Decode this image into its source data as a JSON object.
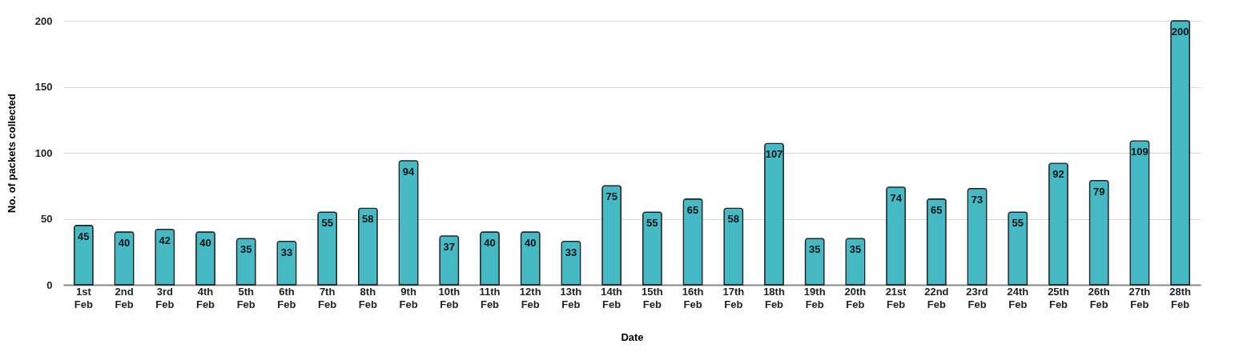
{
  "chart_data": {
    "type": "bar",
    "xlabel": "Date",
    "ylabel": "No. of packets collected",
    "categories": [
      "1st Feb",
      "2nd Feb",
      "3rd Feb",
      "4th Feb",
      "5th Feb",
      "6th Feb",
      "7th Feb",
      "8th Feb",
      "9th Feb",
      "10th Feb",
      "11th Feb",
      "12th Feb",
      "13th Feb",
      "14th Feb",
      "15th Feb",
      "16th Feb",
      "17th Feb",
      "18th Feb",
      "19th Feb",
      "20th Feb",
      "21st Feb",
      "22nd Feb",
      "23rd Feb",
      "24th Feb",
      "25th Feb",
      "26th Feb",
      "27th Feb",
      "28th Feb"
    ],
    "values": [
      45,
      40,
      42,
      40,
      35,
      33,
      55,
      58,
      94,
      37,
      40,
      40,
      33,
      75,
      55,
      65,
      58,
      107,
      35,
      35,
      74,
      65,
      73,
      55,
      92,
      79,
      109,
      200
    ],
    "color": "#45b9c4",
    "ylim": [
      0,
      200
    ],
    "yticks": [
      0,
      50,
      100,
      150,
      200
    ],
    "grid": "y",
    "data_labels": true
  }
}
